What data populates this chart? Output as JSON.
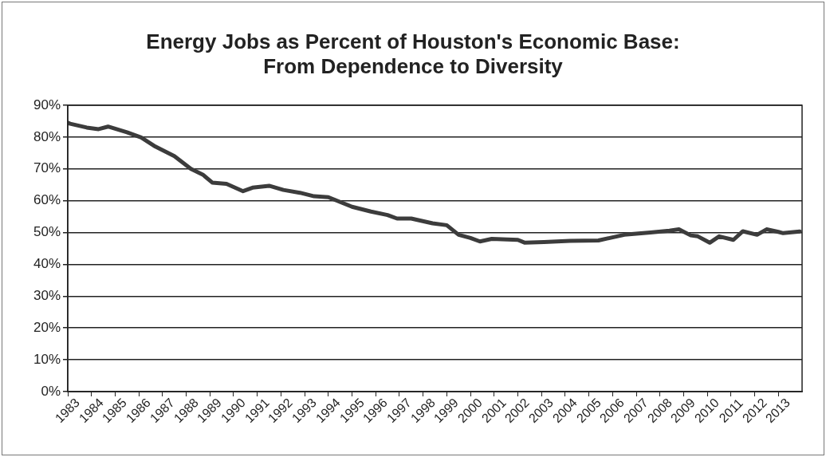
{
  "chart_data": {
    "type": "line",
    "title": "Energy Jobs as Percent of Houston's Economic Base: From Dependence to Diversity",
    "x": [
      1983.0,
      1983.1,
      1983.8,
      1984.3,
      1984.7,
      1985.5,
      1986.1,
      1986.7,
      1987.5,
      1988.2,
      1988.7,
      1989.1,
      1989.7,
      1990.4,
      1990.8,
      1991.5,
      1992.1,
      1992.8,
      1993.4,
      1994.0,
      1994.5,
      1995.0,
      1995.8,
      1996.5,
      1996.9,
      1997.5,
      1998.4,
      1999.0,
      1999.5,
      2000.0,
      2000.4,
      2000.9,
      2002.0,
      2002.3,
      2003.1,
      2004.2,
      2005.4,
      2006.5,
      2007.6,
      2008.4,
      2008.8,
      2009.3,
      2009.6,
      2010.1,
      2010.5,
      2011.1,
      2011.5,
      2012.1,
      2012.5,
      2013.0,
      2013.2,
      2013.9
    ],
    "series": [
      {
        "color": "#3c3c3c",
        "values": [
          84.5,
          84.2,
          83.0,
          82.5,
          83.3,
          81.5,
          79.9,
          77.0,
          74.0,
          70.0,
          68.2,
          65.7,
          65.3,
          63.0,
          64.1,
          64.7,
          63.4,
          62.5,
          61.4,
          61.1,
          59.6,
          58.1,
          56.6,
          55.5,
          54.4,
          54.4,
          52.9,
          52.3,
          49.3,
          48.3,
          47.2,
          48.0,
          47.7,
          46.8,
          47.0,
          47.4,
          47.5,
          49.3,
          50.0,
          50.6,
          51.0,
          49.1,
          48.8,
          46.8,
          48.8,
          47.7,
          50.4,
          49.3,
          51.0,
          50.2,
          49.8,
          50.3
        ]
      }
    ],
    "xlim": [
      1983,
      2014
    ],
    "xticks": [
      1983,
      1984,
      1985,
      1986,
      1987,
      1988,
      1989,
      1990,
      1991,
      1992,
      1993,
      1994,
      1995,
      1996,
      1997,
      1998,
      1999,
      2000,
      2001,
      2002,
      2003,
      2004,
      2005,
      2006,
      2007,
      2008,
      2009,
      2010,
      2011,
      2012,
      2013
    ],
    "ylim": [
      0,
      90
    ],
    "yticks": [
      {
        "value": 0,
        "label": "0%"
      },
      {
        "value": 10,
        "label": "10%"
      },
      {
        "value": 20,
        "label": "20%"
      },
      {
        "value": 30,
        "label": "30%"
      },
      {
        "value": 40,
        "label": "40%"
      },
      {
        "value": 50,
        "label": "50%"
      },
      {
        "value": 60,
        "label": "60%"
      },
      {
        "value": 70,
        "label": "70%"
      },
      {
        "value": 80,
        "label": "80%"
      },
      {
        "value": 90,
        "label": "90%"
      }
    ],
    "grid": "y",
    "legend": false,
    "marker": "none",
    "line_style": "solid"
  }
}
